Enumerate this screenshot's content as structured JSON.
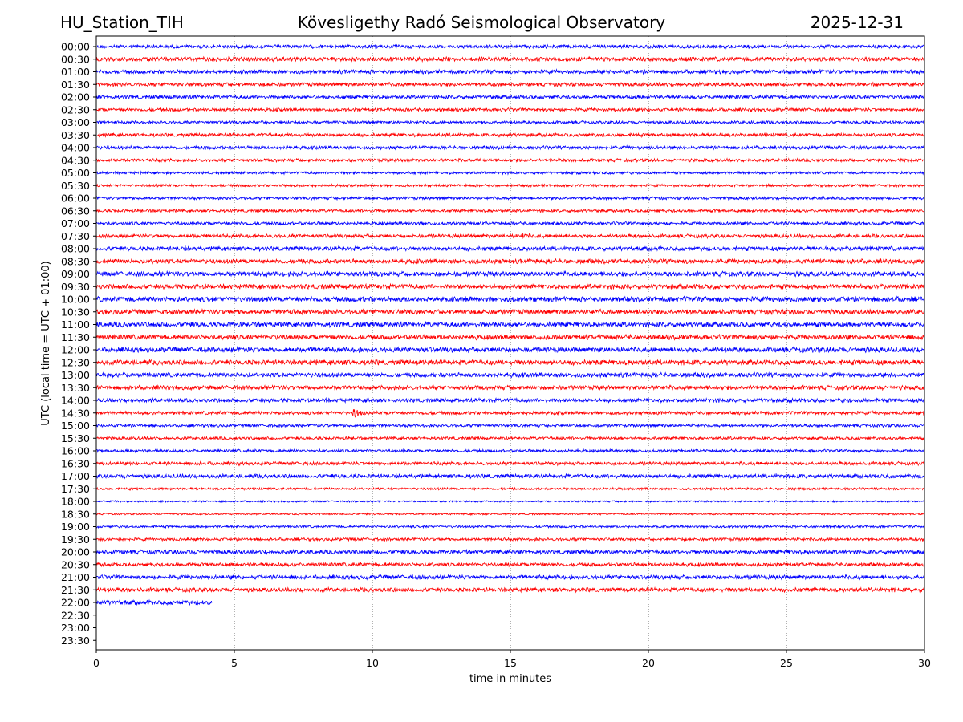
{
  "header": {
    "station": "HU_Station_TIH",
    "observatory": "Kövesligethy Radó Seismological Observatory",
    "date": "2025-12-31"
  },
  "chart_data": {
    "type": "line",
    "title": "Kövesligethy Radó Seismological Observatory",
    "xlabel": "time in minutes",
    "ylabel": "UTC (local time = UTC + 01:00)",
    "xlim": [
      0,
      30
    ],
    "x_ticks": [
      0,
      5,
      10,
      15,
      20,
      25,
      30
    ],
    "x_tick_labels": [
      "0",
      "5",
      "10",
      "15",
      "20",
      "25",
      "30"
    ],
    "grid": "vertical dotted lines at x ticks",
    "colors": {
      "even_rows": "#0000ff",
      "odd_rows": "#ff0000",
      "grid": "#000000"
    },
    "rows": [
      {
        "label": "00:00",
        "end_minute": 30,
        "amplitude": 2.5,
        "color": "#0000ff"
      },
      {
        "label": "00:30",
        "end_minute": 30,
        "amplitude": 3.0,
        "color": "#ff0000"
      },
      {
        "label": "01:00",
        "end_minute": 30,
        "amplitude": 2.8,
        "color": "#0000ff"
      },
      {
        "label": "01:30",
        "end_minute": 30,
        "amplitude": 2.6,
        "color": "#ff0000"
      },
      {
        "label": "02:00",
        "end_minute": 30,
        "amplitude": 2.5,
        "color": "#0000ff"
      },
      {
        "label": "02:30",
        "end_minute": 30,
        "amplitude": 2.2,
        "color": "#ff0000"
      },
      {
        "label": "03:00",
        "end_minute": 30,
        "amplitude": 2.0,
        "color": "#0000ff"
      },
      {
        "label": "03:30",
        "end_minute": 30,
        "amplitude": 2.4,
        "color": "#ff0000"
      },
      {
        "label": "04:00",
        "end_minute": 30,
        "amplitude": 2.4,
        "color": "#0000ff"
      },
      {
        "label": "04:30",
        "end_minute": 30,
        "amplitude": 2.2,
        "color": "#ff0000"
      },
      {
        "label": "05:00",
        "end_minute": 30,
        "amplitude": 1.8,
        "color": "#0000ff"
      },
      {
        "label": "05:30",
        "end_minute": 30,
        "amplitude": 1.8,
        "color": "#ff0000"
      },
      {
        "label": "06:00",
        "end_minute": 30,
        "amplitude": 2.0,
        "color": "#0000ff"
      },
      {
        "label": "06:30",
        "end_minute": 30,
        "amplitude": 2.0,
        "color": "#ff0000"
      },
      {
        "label": "07:00",
        "end_minute": 30,
        "amplitude": 2.2,
        "color": "#0000ff"
      },
      {
        "label": "07:30",
        "end_minute": 30,
        "amplitude": 2.6,
        "color": "#ff0000",
        "event_minute": 15.5,
        "event_amplitude": 5.0
      },
      {
        "label": "08:00",
        "end_minute": 30,
        "amplitude": 3.0,
        "color": "#0000ff"
      },
      {
        "label": "08:30",
        "end_minute": 30,
        "amplitude": 3.2,
        "color": "#ff0000"
      },
      {
        "label": "09:00",
        "end_minute": 30,
        "amplitude": 3.4,
        "color": "#0000ff"
      },
      {
        "label": "09:30",
        "end_minute": 30,
        "amplitude": 3.4,
        "color": "#ff0000"
      },
      {
        "label": "10:00",
        "end_minute": 30,
        "amplitude": 3.6,
        "color": "#0000ff"
      },
      {
        "label": "10:30",
        "end_minute": 30,
        "amplitude": 3.4,
        "color": "#ff0000"
      },
      {
        "label": "11:00",
        "end_minute": 30,
        "amplitude": 3.4,
        "color": "#0000ff"
      },
      {
        "label": "11:30",
        "end_minute": 30,
        "amplitude": 3.4,
        "color": "#ff0000"
      },
      {
        "label": "12:00",
        "end_minute": 30,
        "amplitude": 3.6,
        "color": "#0000ff"
      },
      {
        "label": "12:30",
        "end_minute": 30,
        "amplitude": 3.6,
        "color": "#ff0000"
      },
      {
        "label": "13:00",
        "end_minute": 30,
        "amplitude": 3.2,
        "color": "#0000ff"
      },
      {
        "label": "13:30",
        "end_minute": 30,
        "amplitude": 3.0,
        "color": "#ff0000"
      },
      {
        "label": "14:00",
        "end_minute": 30,
        "amplitude": 2.8,
        "color": "#0000ff"
      },
      {
        "label": "14:30",
        "end_minute": 30,
        "amplitude": 2.4,
        "color": "#ff0000",
        "event_minute": 9.4,
        "event_amplitude": 6.5
      },
      {
        "label": "15:00",
        "end_minute": 30,
        "amplitude": 2.0,
        "color": "#0000ff"
      },
      {
        "label": "15:30",
        "end_minute": 30,
        "amplitude": 2.0,
        "color": "#ff0000"
      },
      {
        "label": "16:00",
        "end_minute": 30,
        "amplitude": 2.0,
        "color": "#0000ff"
      },
      {
        "label": "16:30",
        "end_minute": 30,
        "amplitude": 2.4,
        "color": "#ff0000"
      },
      {
        "label": "17:00",
        "end_minute": 30,
        "amplitude": 2.8,
        "color": "#0000ff"
      },
      {
        "label": "17:30",
        "end_minute": 30,
        "amplitude": 1.6,
        "color": "#ff0000"
      },
      {
        "label": "18:00",
        "end_minute": 30,
        "amplitude": 1.2,
        "color": "#0000ff"
      },
      {
        "label": "18:30",
        "end_minute": 30,
        "amplitude": 1.2,
        "color": "#ff0000"
      },
      {
        "label": "19:00",
        "end_minute": 30,
        "amplitude": 1.6,
        "color": "#0000ff"
      },
      {
        "label": "19:30",
        "end_minute": 30,
        "amplitude": 2.0,
        "color": "#ff0000"
      },
      {
        "label": "20:00",
        "end_minute": 30,
        "amplitude": 2.8,
        "color": "#0000ff"
      },
      {
        "label": "20:30",
        "end_minute": 30,
        "amplitude": 2.6,
        "color": "#ff0000"
      },
      {
        "label": "21:00",
        "end_minute": 30,
        "amplitude": 3.0,
        "color": "#0000ff"
      },
      {
        "label": "21:30",
        "end_minute": 30,
        "amplitude": 3.0,
        "color": "#ff0000"
      },
      {
        "label": "22:00",
        "end_minute": 4.2,
        "amplitude": 3.2,
        "color": "#0000ff"
      },
      {
        "label": "22:30",
        "end_minute": 0,
        "amplitude": 0,
        "color": "#ff0000"
      },
      {
        "label": "23:00",
        "end_minute": 0,
        "amplitude": 0,
        "color": "#0000ff"
      },
      {
        "label": "23:30",
        "end_minute": 0,
        "amplitude": 0,
        "color": "#ff0000"
      }
    ]
  }
}
